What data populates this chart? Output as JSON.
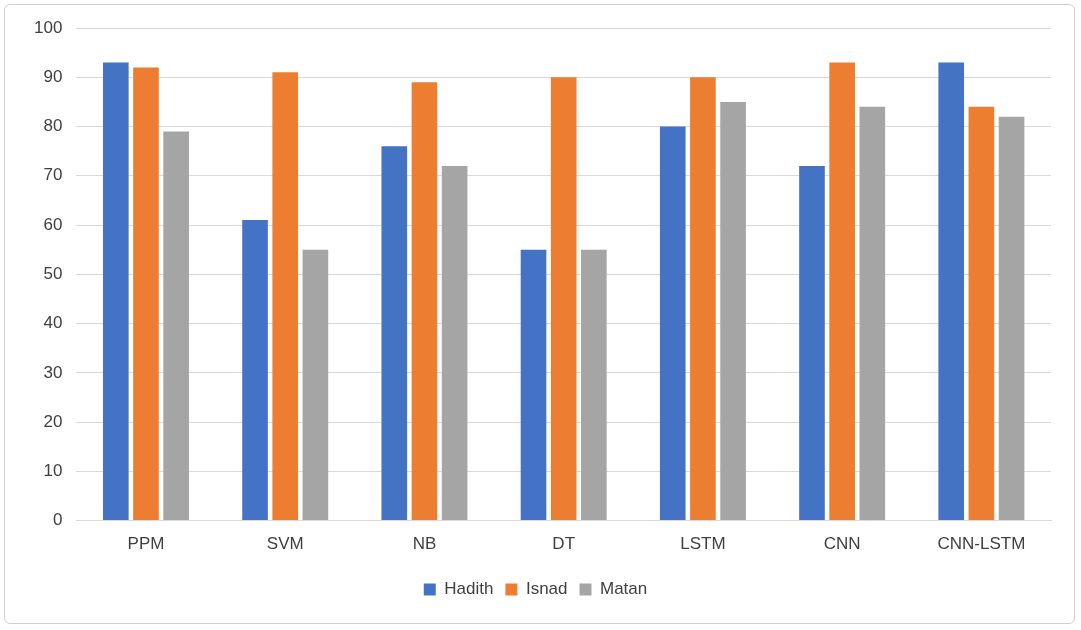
{
  "chart_data": {
    "type": "bar",
    "categories": [
      "PPM",
      "SVM",
      "NB",
      "DT",
      "LSTM",
      "CNN",
      "CNN-LSTM"
    ],
    "series": [
      {
        "name": "Hadith",
        "color": "#4472c4",
        "values": [
          93,
          61,
          76,
          55,
          80,
          72,
          93
        ]
      },
      {
        "name": "Isnad",
        "color": "#ed7d31",
        "values": [
          92,
          91,
          89,
          90,
          90,
          93,
          84
        ]
      },
      {
        "name": "Matan",
        "color": "#a5a5a5",
        "values": [
          79,
          55,
          72,
          55,
          85,
          84,
          82
        ]
      }
    ],
    "ylim": [
      0,
      100
    ],
    "yticks": [
      0,
      10,
      20,
      30,
      40,
      50,
      60,
      70,
      80,
      90,
      100
    ],
    "grid": "y",
    "legend": "bottom"
  }
}
